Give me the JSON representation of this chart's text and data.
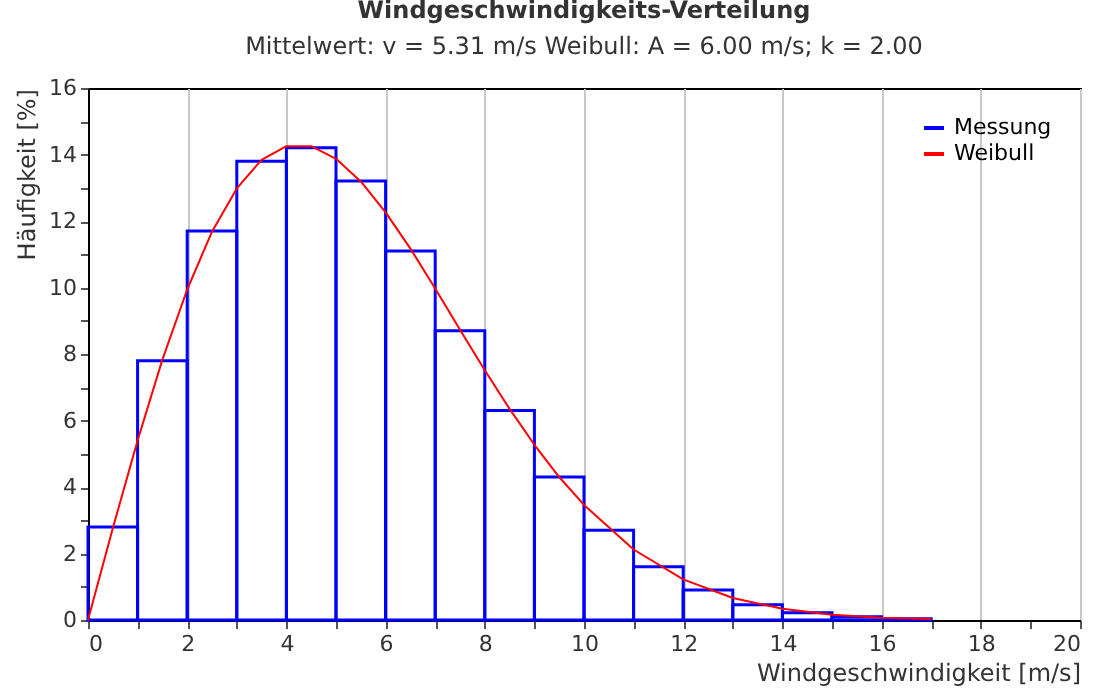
{
  "chart_data": {
    "type": "histogram",
    "title": "Windgeschwindigkeits-Verteilung",
    "subtitle": "Mittelwert: v = 5.31 m/s    Weibull: A = 6.00 m/s; k = 2.00",
    "xlabel": "Windgeschwindigkeit [m/s]",
    "ylabel": "Häufigkeit [%]",
    "bins": [
      0,
      1,
      2,
      3,
      4,
      5,
      6,
      7,
      8,
      9,
      10,
      11,
      12,
      13,
      14,
      15,
      16,
      17
    ],
    "series": [
      {
        "name": "Messung",
        "color": "#0000ff",
        "values": [
          2.8,
          7.8,
          11.7,
          13.8,
          14.2,
          13.2,
          11.1,
          8.7,
          6.3,
          4.3,
          2.7,
          1.6,
          0.9,
          0.46,
          0.22,
          0.1,
          0.04
        ]
      },
      {
        "name": "Weibull",
        "type": "line",
        "color": "#ff0000",
        "x": [
          0,
          0.5,
          1,
          1.5,
          2,
          2.5,
          3,
          3.5,
          4,
          4.5,
          5,
          5.5,
          6,
          6.5,
          7,
          7.5,
          8,
          8.5,
          9,
          9.5,
          10,
          11,
          12,
          13,
          14,
          15,
          16,
          17
        ],
        "values": [
          0,
          2.76,
          5.4,
          7.83,
          9.94,
          11.68,
          12.98,
          13.84,
          14.25,
          14.25,
          13.87,
          13.19,
          12.26,
          11.17,
          9.97,
          8.73,
          7.51,
          6.35,
          5.27,
          4.3,
          3.46,
          2.12,
          1.22,
          0.66,
          0.34,
          0.16,
          0.07,
          0.03
        ]
      }
    ],
    "xlim": [
      0,
      20
    ],
    "xticks": [
      0,
      {
        "value": 1,
        "label": null
      },
      2,
      {
        "value": 3,
        "label": null
      },
      4,
      {
        "value": 5,
        "label": null
      },
      6,
      {
        "value": 7,
        "label": null
      },
      8,
      {
        "value": 9,
        "label": null
      },
      10,
      {
        "value": 11,
        "label": null
      },
      12,
      {
        "value": 13,
        "label": null
      },
      14,
      {
        "value": 15,
        "label": null
      },
      16,
      {
        "value": 17,
        "label": null
      },
      18,
      {
        "value": 19,
        "label": null
      },
      20
    ],
    "ylim": [
      0,
      16
    ],
    "yticks": [
      0,
      {
        "value": 1,
        "label": null
      },
      2,
      {
        "value": 3,
        "label": null
      },
      4,
      {
        "value": 5,
        "label": null
      },
      6,
      {
        "value": 7,
        "label": null
      },
      8,
      {
        "value": 9,
        "label": null
      },
      10,
      {
        "value": 11,
        "label": null
      },
      12,
      {
        "value": 13,
        "label": null
      },
      14,
      {
        "value": 15,
        "label": null
      },
      16
    ],
    "grid": "x",
    "legend": "top right",
    "marker": "none",
    "line_style": "solid"
  }
}
